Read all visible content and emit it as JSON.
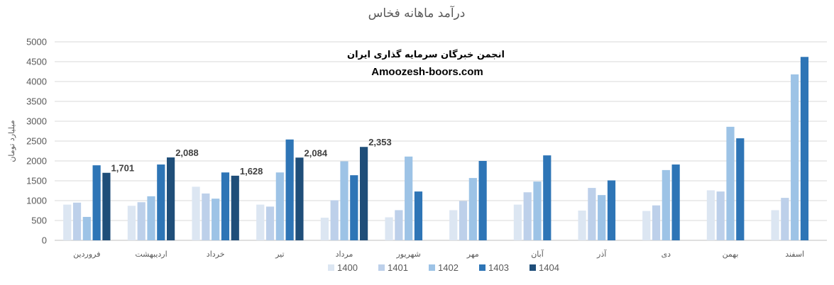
{
  "chart_data": {
    "type": "bar",
    "title": "درآمد ماهانه فخاس",
    "ylabel": "میلیارد تومان",
    "ylim": [
      0,
      5000
    ],
    "yticks": [
      "0",
      "500",
      "1000",
      "1500",
      "2000",
      "2500",
      "3000",
      "3500",
      "4000",
      "4500",
      "5000"
    ],
    "grid": true,
    "legend_position": "bottom",
    "categories": [
      "فروردین",
      "اردیبهشت",
      "خرداد",
      "تیر",
      "مرداد",
      "شهریور",
      "مهر",
      "آبان",
      "آذر",
      "دی",
      "بهمن",
      "اسفند"
    ],
    "series": [
      {
        "name": "1400",
        "color": "#dce6f2",
        "values": [
          900,
          870,
          1350,
          900,
          570,
          580,
          760,
          900,
          750,
          740,
          1260,
          760
        ]
      },
      {
        "name": "1401",
        "color": "#bdd0ea",
        "values": [
          950,
          960,
          1180,
          850,
          1010,
          760,
          990,
          1210,
          1320,
          880,
          1230,
          1070
        ]
      },
      {
        "name": "1402",
        "color": "#9dc3e6",
        "values": [
          590,
          1110,
          1050,
          1710,
          1990,
          2110,
          1570,
          1480,
          1140,
          1770,
          2860,
          4180
        ]
      },
      {
        "name": "1403",
        "color": "#2e75b6",
        "values": [
          1890,
          1910,
          1710,
          2540,
          1640,
          1230,
          2000,
          2140,
          1510,
          1910,
          2570,
          4620
        ]
      },
      {
        "name": "1404",
        "color": "#1f4e79",
        "values": [
          1701,
          2088,
          1628,
          2084,
          2353,
          null,
          null,
          null,
          null,
          null,
          null,
          null
        ],
        "data_labels": [
          "1,701",
          "2,088",
          "1,628",
          "2,084",
          "2,353"
        ]
      }
    ],
    "annotations": [
      "انجمن خبرگان سرمایه گذاری ایران",
      "Amoozesh-boors.com"
    ]
  }
}
